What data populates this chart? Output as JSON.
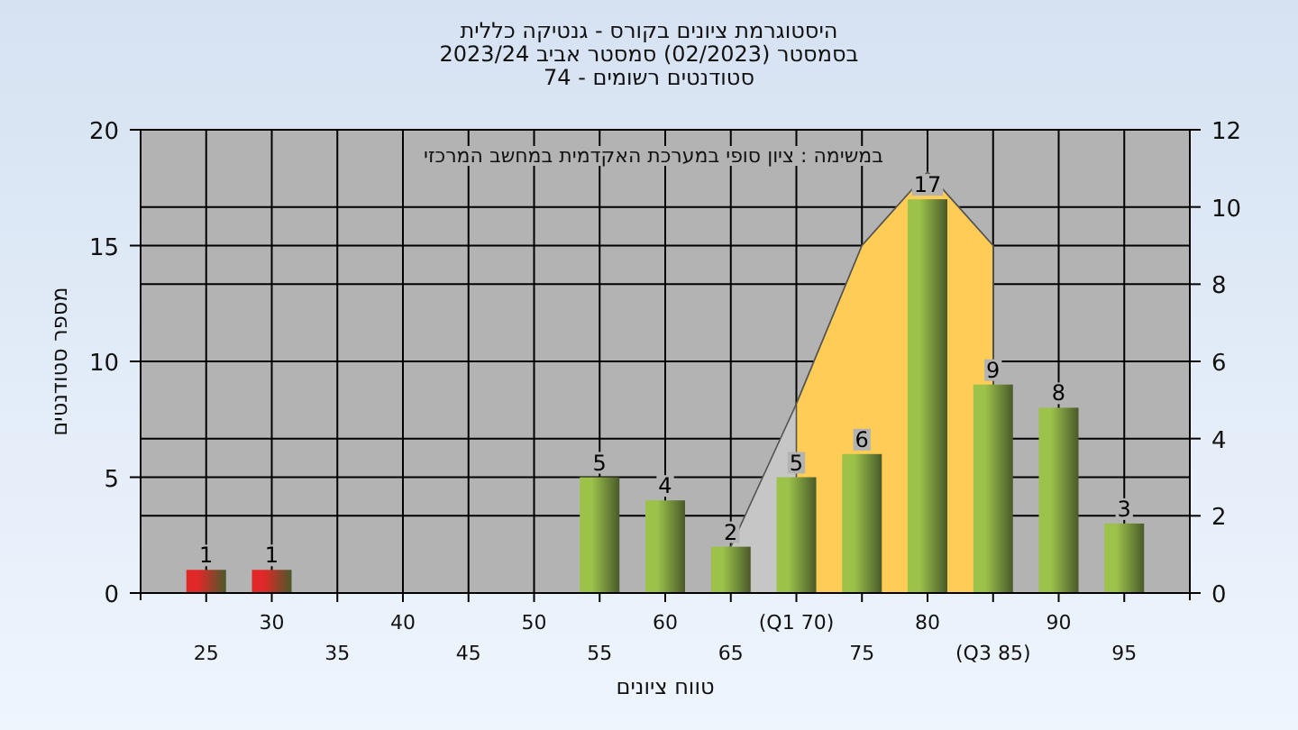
{
  "chart_data": {
    "type": "bar",
    "title": "היסטוגרמת ציונים בקורס - גנטיקה כללית",
    "subtitle": "בסמסטר  (02/2023)  סמסטר אביב 2023/24\nסטודנטים רשומים - 74",
    "xlabel": "טווח ציונים",
    "ylabel": "מספר סטודנטים",
    "annotations": [
      "במשימה : ציון סופי במערכת האקדמית במחשב המרכזי"
    ],
    "categories": [
      "25",
      "30",
      "35",
      "40",
      "45",
      "50",
      "55",
      "60",
      "65",
      "(Q1 70)",
      "75",
      "80",
      "(Q3 85)",
      "90",
      "95"
    ],
    "series": [
      {
        "type": "area",
        "axis": "y2",
        "color": "#c6c6c6",
        "values": [
          null,
          null,
          null,
          null,
          null,
          null,
          null,
          null,
          1.2,
          4.9,
          9,
          10.9,
          9,
          null,
          null
        ]
      },
      {
        "type": "area",
        "axis": "y2",
        "color": "#ffcc55",
        "values": [
          null,
          null,
          null,
          null,
          null,
          null,
          null,
          null,
          null,
          4.9,
          9,
          10.9,
          9,
          null,
          null
        ]
      },
      {
        "colors": [
          "#e02828",
          "#e02828",
          "#9cc24a",
          "#9cc24a",
          "#9cc24a",
          "#9cc24a",
          "#9cc24a",
          "#9cc24a",
          "#9cc24a",
          "#9cc24a",
          "#9cc24a",
          "#9cc24a",
          "#9cc24a",
          "#9cc24a",
          "#9cc24a"
        ],
        "values": [
          1,
          1,
          0,
          0,
          0,
          0,
          5,
          4,
          2,
          5,
          6,
          17,
          9,
          8,
          3
        ],
        "value_labels": [
          "1",
          "1",
          null,
          null,
          null,
          null,
          "5",
          "4",
          "2",
          "5",
          "6",
          "17",
          "9",
          "8",
          "3"
        ]
      }
    ],
    "ylim": [
      0,
      20
    ],
    "yticks": [
      0,
      5,
      10,
      15,
      20
    ],
    "y2lim": [
      0,
      12
    ],
    "y2ticks": [
      0,
      2,
      4,
      6,
      8,
      10,
      12
    ],
    "grid": true
  }
}
